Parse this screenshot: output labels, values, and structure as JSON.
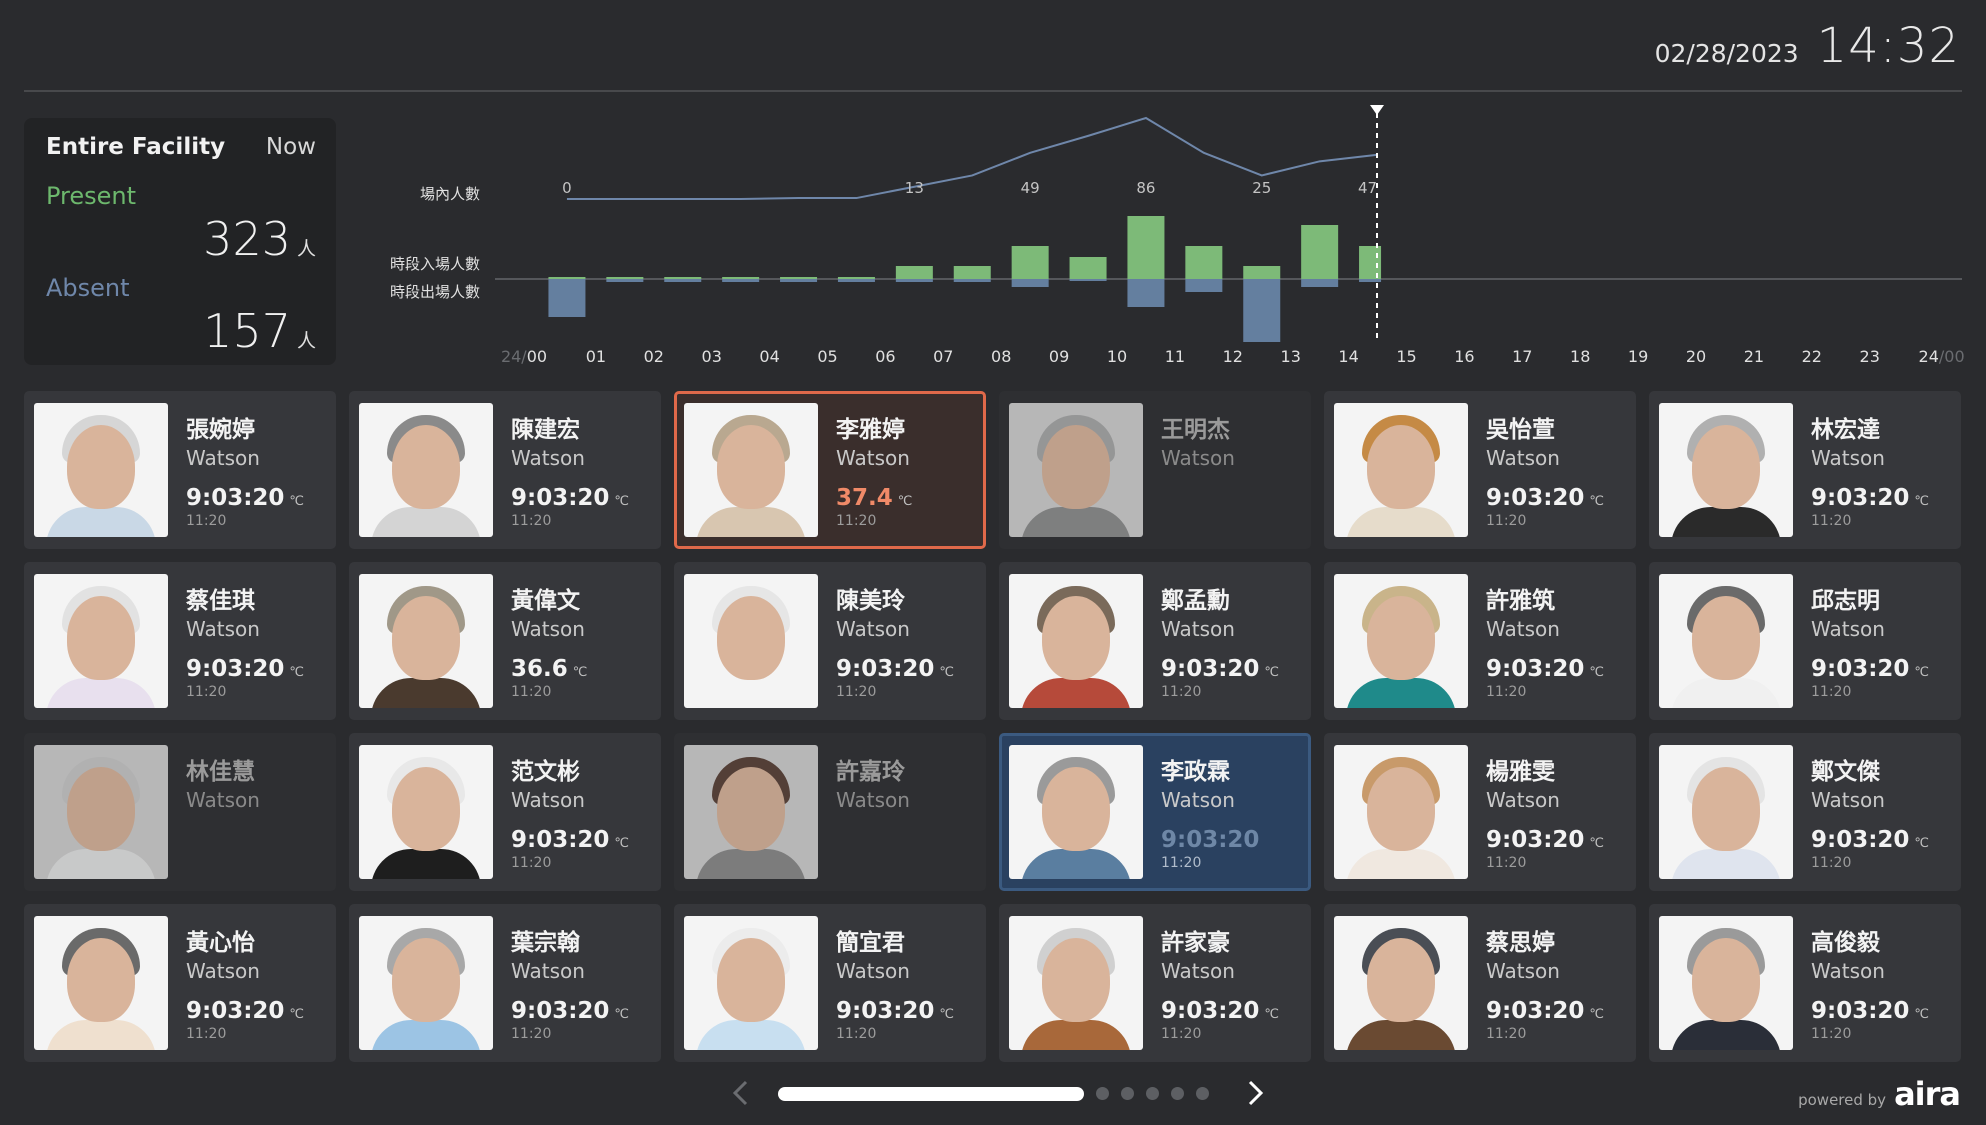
{
  "header": {
    "date": "02/28/2023",
    "time": "14:32"
  },
  "summary": {
    "title": "Entire Facility",
    "period": "Now",
    "present_label": "Present",
    "present_count": "323",
    "absent_label": "Absent",
    "absent_count": "157",
    "unit": "人",
    "present_color": "#6db86d",
    "absent_color": "#6f87aa"
  },
  "chart_data": {
    "type": "bar",
    "title": "",
    "legend": [
      "場內人數",
      "時段入場人數",
      "時段出場人數"
    ],
    "x_ticks": [
      "24/00",
      "01",
      "02",
      "03",
      "04",
      "05",
      "06",
      "07",
      "08",
      "09",
      "10",
      "11",
      "12",
      "13",
      "14",
      "15",
      "16",
      "17",
      "18",
      "19",
      "20",
      "21",
      "22",
      "23",
      "24/00"
    ],
    "current_time_marker": "14:32",
    "series": [
      {
        "name": "場內人數",
        "type": "line",
        "color": "#6f87aa",
        "x": [
          0.5,
          1.5,
          2.5,
          3.5,
          4.5,
          5.5,
          6.5,
          7.5,
          8.5,
          9.5,
          10.5,
          11.5,
          12.5,
          13.5,
          14.5
        ],
        "values": [
          0,
          0,
          0,
          0,
          1,
          1,
          13,
          25,
          49,
          67,
          86,
          49,
          25,
          40,
          47
        ],
        "labels": [
          {
            "x": 0.5,
            "text": "0"
          },
          {
            "x": 6.5,
            "text": "13"
          },
          {
            "x": 8.5,
            "text": "49"
          },
          {
            "x": 10.5,
            "text": "86"
          },
          {
            "x": 12.5,
            "text": "25"
          },
          {
            "x": 14.5,
            "text": "47"
          }
        ]
      },
      {
        "name": "時段入場人數",
        "type": "bar",
        "color": "#7dba78",
        "categories": [
          "00",
          "01",
          "02",
          "03",
          "04",
          "05",
          "06",
          "07",
          "08",
          "09",
          "10",
          "11",
          "12",
          "13",
          "14"
        ],
        "values": [
          2,
          2,
          2,
          2,
          2,
          2,
          13,
          13,
          33,
          22,
          63,
          33,
          13,
          54,
          33
        ]
      },
      {
        "name": "時段出場人數",
        "type": "bar",
        "color": "#647f9f",
        "categories": [
          "00",
          "01",
          "02",
          "03",
          "04",
          "05",
          "06",
          "07",
          "08",
          "09",
          "10",
          "11",
          "12",
          "13",
          "14"
        ],
        "values": [
          38,
          3,
          3,
          3,
          3,
          3,
          3,
          3,
          8,
          2,
          28,
          13,
          63,
          8,
          3
        ]
      }
    ]
  },
  "cards": [
    {
      "name": "張婉婷",
      "org": "Watson",
      "reading": "9:03:20",
      "unit": "℃",
      "time": "11:20",
      "state": "normal",
      "hair": "#d6d6d6",
      "body": "#c9d8e6"
    },
    {
      "name": "陳建宏",
      "org": "Watson",
      "reading": "9:03:20",
      "unit": "℃",
      "time": "11:20",
      "state": "normal",
      "hair": "#8a8a8a",
      "body": "#d4d4d4"
    },
    {
      "name": "李雅婷",
      "org": "Watson",
      "reading": "37.4",
      "unit": "℃",
      "time": "11:20",
      "state": "alert",
      "hair": "#b9a890",
      "body": "#d8c6b0"
    },
    {
      "name": "王明杰",
      "org": "Watson",
      "reading": "",
      "unit": "",
      "time": "",
      "state": "dim",
      "hair": "#a8a8a8",
      "body": "#8d8d8d"
    },
    {
      "name": "吳怡萱",
      "org": "Watson",
      "reading": "9:03:20",
      "unit": "℃",
      "time": "11:20",
      "state": "normal",
      "hair": "#c58a45",
      "body": "#e6dccb"
    },
    {
      "name": "林宏達",
      "org": "Watson",
      "reading": "9:03:20",
      "unit": "℃",
      "time": "11:20",
      "state": "normal",
      "hair": "#b0b0b0",
      "body": "#2a2a2a"
    },
    {
      "name": "蔡佳琪",
      "org": "Watson",
      "reading": "9:03:20",
      "unit": "℃",
      "time": "11:20",
      "state": "normal",
      "hair": "#e2e2e2",
      "body": "#e8e0ee"
    },
    {
      "name": "黃偉文",
      "org": "Watson",
      "reading": "36.6",
      "unit": "℃",
      "time": "11:20",
      "state": "normal",
      "hair": "#a09888",
      "body": "#4a3a2e"
    },
    {
      "name": "陳美玲",
      "org": "Watson",
      "reading": "9:03:20",
      "unit": "℃",
      "time": "11:20",
      "state": "normal",
      "hair": "#e6e6e6",
      "body": "#f4f4f4"
    },
    {
      "name": "鄭孟勳",
      "org": "Watson",
      "reading": "9:03:20",
      "unit": "℃",
      "time": "11:20",
      "state": "normal",
      "hair": "#7a6a5a",
      "body": "#b64a3a"
    },
    {
      "name": "許雅筑",
      "org": "Watson",
      "reading": "9:03:20",
      "unit": "℃",
      "time": "11:20",
      "state": "normal",
      "hair": "#c9b48a",
      "body": "#1f8a8a"
    },
    {
      "name": "邱志明",
      "org": "Watson",
      "reading": "9:03:20",
      "unit": "℃",
      "time": "11:20",
      "state": "normal",
      "hair": "#6a6a6a",
      "body": "#f0f0f0"
    },
    {
      "name": "林佳慧",
      "org": "Watson",
      "reading": "",
      "unit": "",
      "time": "",
      "state": "dim",
      "hair": "#c8c8c8",
      "body": "#e4e4e4"
    },
    {
      "name": "范文彬",
      "org": "Watson",
      "reading": "9:03:20",
      "unit": "℃",
      "time": "11:20",
      "state": "normal",
      "hair": "#e8e8e8",
      "body": "#1e1e1e"
    },
    {
      "name": "許嘉玲",
      "org": "Watson",
      "reading": "",
      "unit": "",
      "time": "",
      "state": "dim",
      "hair": "#5a4238",
      "body": "#8a8a8a"
    },
    {
      "name": "李政霖",
      "org": "Watson",
      "reading": "9:03:20",
      "unit": "",
      "time": "11:20",
      "state": "selected",
      "hair": "#9a9a9a",
      "body": "#5a7ea0"
    },
    {
      "name": "楊雅雯",
      "org": "Watson",
      "reading": "9:03:20",
      "unit": "℃",
      "time": "11:20",
      "state": "normal",
      "hair": "#c89a6a",
      "body": "#f0e8e0"
    },
    {
      "name": "鄭文傑",
      "org": "Watson",
      "reading": "9:03:20",
      "unit": "℃",
      "time": "11:20",
      "state": "normal",
      "hair": "#e4e4e4",
      "body": "#dfe4ee"
    },
    {
      "name": "黃心怡",
      "org": "Watson",
      "reading": "9:03:20",
      "unit": "℃",
      "time": "11:20",
      "state": "normal",
      "hair": "#6a6a6a",
      "body": "#efe0cf"
    },
    {
      "name": "葉宗翰",
      "org": "Watson",
      "reading": "9:03:20",
      "unit": "℃",
      "time": "11:20",
      "state": "normal",
      "hair": "#a8a8a8",
      "body": "#9cc4e4"
    },
    {
      "name": "簡宜君",
      "org": "Watson",
      "reading": "9:03:20",
      "unit": "℃",
      "time": "11:20",
      "state": "normal",
      "hair": "#ececec",
      "body": "#c8dff0"
    },
    {
      "name": "許家豪",
      "org": "Watson",
      "reading": "9:03:20",
      "unit": "℃",
      "time": "11:20",
      "state": "normal",
      "hair": "#d0d0d0",
      "body": "#a8683a"
    },
    {
      "name": "蔡思婷",
      "org": "Watson",
      "reading": "9:03:20",
      "unit": "℃",
      "time": "11:20",
      "state": "normal",
      "hair": "#4a4e55",
      "body": "#6a4a32"
    },
    {
      "name": "高俊毅",
      "org": "Watson",
      "reading": "9:03:20",
      "unit": "℃",
      "time": "11:20",
      "state": "normal",
      "hair": "#9a9a9a",
      "body": "#2a2e38"
    }
  ],
  "pager": {
    "prev_icon": "chevron-left",
    "next_icon": "chevron-right",
    "pages": 6,
    "current": 1
  },
  "branding": {
    "powered_by": "powered by",
    "logo": "aira"
  }
}
